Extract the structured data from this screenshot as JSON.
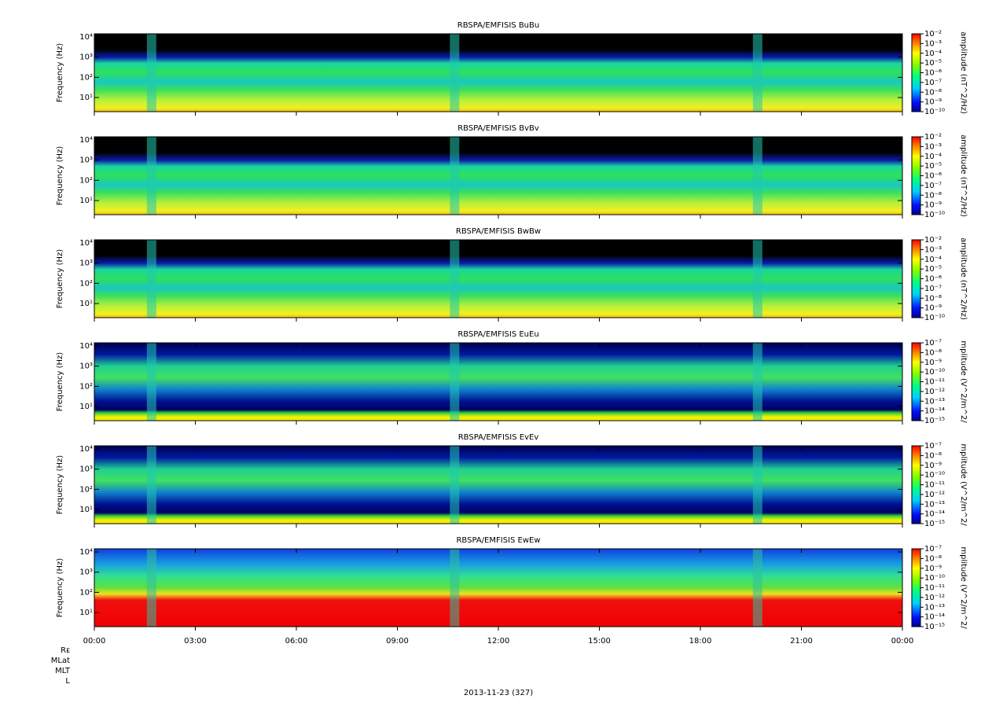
{
  "chart_data": [
    {
      "type": "spectrogram",
      "title": "RBSPA/EMFISIS  BuBu",
      "ylabel": "Frequency (Hz)",
      "yscale": "log",
      "ylim": [
        2,
        14300
      ],
      "yticks": [
        {
          "value": 10,
          "label": "10¹"
        },
        {
          "value": 100,
          "label": "10²"
        },
        {
          "value": 1000,
          "label": "10³"
        },
        {
          "value": 10000,
          "label": "10⁴"
        }
      ],
      "colorbar_label": "amplitude (nT^2/Hz)",
      "clim": [
        1e-10,
        0.01
      ],
      "cticks": [
        {
          "value": 1e-10,
          "label": "10⁻¹⁰"
        },
        {
          "value": 1e-09,
          "label": "10⁻⁹"
        },
        {
          "value": 1e-08,
          "label": "10⁻⁸"
        },
        {
          "value": 1e-07,
          "label": "10⁻⁷"
        },
        {
          "value": 1e-06,
          "label": "10⁻⁶"
        },
        {
          "value": 1e-05,
          "label": "10⁻⁵"
        },
        {
          "value": 0.0001,
          "label": "10⁻⁴"
        },
        {
          "value": 0.001,
          "label": "10⁻³"
        },
        {
          "value": 0.01,
          "label": "10⁻²"
        }
      ]
    },
    {
      "type": "spectrogram",
      "title": "RBSPA/EMFISIS  BvBv",
      "ylabel": "Frequency (Hz)",
      "yscale": "log",
      "ylim": [
        2,
        14300
      ],
      "yticks": [
        {
          "value": 10,
          "label": "10¹"
        },
        {
          "value": 100,
          "label": "10²"
        },
        {
          "value": 1000,
          "label": "10³"
        },
        {
          "value": 10000,
          "label": "10⁴"
        }
      ],
      "colorbar_label": "amplitude (nT^2/Hz)",
      "clim": [
        1e-10,
        0.01
      ],
      "cticks": [
        {
          "value": 1e-10,
          "label": "10⁻¹⁰"
        },
        {
          "value": 1e-09,
          "label": "10⁻⁹"
        },
        {
          "value": 1e-08,
          "label": "10⁻⁸"
        },
        {
          "value": 1e-07,
          "label": "10⁻⁷"
        },
        {
          "value": 1e-06,
          "label": "10⁻⁶"
        },
        {
          "value": 1e-05,
          "label": "10⁻⁵"
        },
        {
          "value": 0.0001,
          "label": "10⁻⁴"
        },
        {
          "value": 0.001,
          "label": "10⁻³"
        },
        {
          "value": 0.01,
          "label": "10⁻²"
        }
      ]
    },
    {
      "type": "spectrogram",
      "title": "RBSPA/EMFISIS  BwBw",
      "ylabel": "Frequency (Hz)",
      "yscale": "log",
      "ylim": [
        2,
        14300
      ],
      "yticks": [
        {
          "value": 10,
          "label": "10¹"
        },
        {
          "value": 100,
          "label": "10²"
        },
        {
          "value": 1000,
          "label": "10³"
        },
        {
          "value": 10000,
          "label": "10⁴"
        }
      ],
      "colorbar_label": "amplitude (nT^2/Hz)",
      "clim": [
        1e-10,
        0.01
      ],
      "cticks": [
        {
          "value": 1e-10,
          "label": "10⁻¹⁰"
        },
        {
          "value": 1e-09,
          "label": "10⁻⁹"
        },
        {
          "value": 1e-08,
          "label": "10⁻⁸"
        },
        {
          "value": 1e-07,
          "label": "10⁻⁷"
        },
        {
          "value": 1e-06,
          "label": "10⁻⁶"
        },
        {
          "value": 1e-05,
          "label": "10⁻⁵"
        },
        {
          "value": 0.0001,
          "label": "10⁻⁴"
        },
        {
          "value": 0.001,
          "label": "10⁻³"
        },
        {
          "value": 0.01,
          "label": "10⁻²"
        }
      ]
    },
    {
      "type": "spectrogram",
      "title": "RBSPA/EMFISIS  EuEu",
      "ylabel": "Frequency (Hz)",
      "yscale": "log",
      "ylim": [
        2,
        14300
      ],
      "yticks": [
        {
          "value": 10,
          "label": "10¹"
        },
        {
          "value": 100,
          "label": "10²"
        },
        {
          "value": 1000,
          "label": "10³"
        },
        {
          "value": 10000,
          "label": "10⁴"
        }
      ],
      "colorbar_label": "mplitude (V^2/m^2/",
      "clim": [
        1e-15,
        1e-07
      ],
      "cticks": [
        {
          "value": 1e-15,
          "label": "10⁻¹⁵"
        },
        {
          "value": 1e-14,
          "label": "10⁻¹⁴"
        },
        {
          "value": 1e-13,
          "label": "10⁻¹³"
        },
        {
          "value": 1e-12,
          "label": "10⁻¹²"
        },
        {
          "value": 1e-11,
          "label": "10⁻¹¹"
        },
        {
          "value": 1e-10,
          "label": "10⁻¹⁰"
        },
        {
          "value": 1e-09,
          "label": "10⁻⁹"
        },
        {
          "value": 1e-08,
          "label": "10⁻⁸"
        },
        {
          "value": 1e-07,
          "label": "10⁻⁷"
        }
      ]
    },
    {
      "type": "spectrogram",
      "title": "RBSPA/EMFISIS  EvEv",
      "ylabel": "Frequency (Hz)",
      "yscale": "log",
      "ylim": [
        2,
        14300
      ],
      "yticks": [
        {
          "value": 10,
          "label": "10¹"
        },
        {
          "value": 100,
          "label": "10²"
        },
        {
          "value": 1000,
          "label": "10³"
        },
        {
          "value": 10000,
          "label": "10⁴"
        }
      ],
      "colorbar_label": "mplitude (V^2/m^2/",
      "clim": [
        1e-15,
        1e-07
      ],
      "cticks": [
        {
          "value": 1e-15,
          "label": "10⁻¹⁵"
        },
        {
          "value": 1e-14,
          "label": "10⁻¹⁴"
        },
        {
          "value": 1e-13,
          "label": "10⁻¹³"
        },
        {
          "value": 1e-12,
          "label": "10⁻¹²"
        },
        {
          "value": 1e-11,
          "label": "10⁻¹¹"
        },
        {
          "value": 1e-10,
          "label": "10⁻¹⁰"
        },
        {
          "value": 1e-09,
          "label": "10⁻⁹"
        },
        {
          "value": 1e-08,
          "label": "10⁻⁸"
        },
        {
          "value": 1e-07,
          "label": "10⁻⁷"
        }
      ]
    },
    {
      "type": "spectrogram",
      "title": "RBSPA/EMFISIS  EwEw",
      "ylabel": "Frequency (Hz)",
      "yscale": "log",
      "ylim": [
        2,
        14300
      ],
      "yticks": [
        {
          "value": 10,
          "label": "10¹"
        },
        {
          "value": 100,
          "label": "10²"
        },
        {
          "value": 1000,
          "label": "10³"
        },
        {
          "value": 10000,
          "label": "10⁴"
        }
      ],
      "colorbar_label": "mplitude (V^2/m^2/",
      "clim": [
        1e-15,
        1e-07
      ],
      "cticks": [
        {
          "value": 1e-15,
          "label": "10⁻¹⁵"
        },
        {
          "value": 1e-14,
          "label": "10⁻¹⁴"
        },
        {
          "value": 1e-13,
          "label": "10⁻¹³"
        },
        {
          "value": 1e-12,
          "label": "10⁻¹²"
        },
        {
          "value": 1e-11,
          "label": "10⁻¹¹"
        },
        {
          "value": 1e-10,
          "label": "10⁻¹⁰"
        },
        {
          "value": 1e-09,
          "label": "10⁻⁹"
        },
        {
          "value": 1e-08,
          "label": "10⁻⁸"
        },
        {
          "value": 1e-07,
          "label": "10⁻⁷"
        }
      ],
      "xlim": [
        0,
        24
      ],
      "xticks": [
        {
          "value": 0,
          "label": "00:00"
        },
        {
          "value": 3,
          "label": "03:00"
        },
        {
          "value": 6,
          "label": "06:00"
        },
        {
          "value": 9,
          "label": "09:00"
        },
        {
          "value": 12,
          "label": "12:00"
        },
        {
          "value": 15,
          "label": "15:00"
        },
        {
          "value": 18,
          "label": "18:00"
        },
        {
          "value": 21,
          "label": "21:00"
        },
        {
          "value": 24,
          "label": "00:00"
        }
      ],
      "xlabel": "2013-11-23 (327)",
      "ephemeris_labels": [
        "Rᴇ",
        "MLat",
        "MLT",
        "L"
      ]
    }
  ]
}
